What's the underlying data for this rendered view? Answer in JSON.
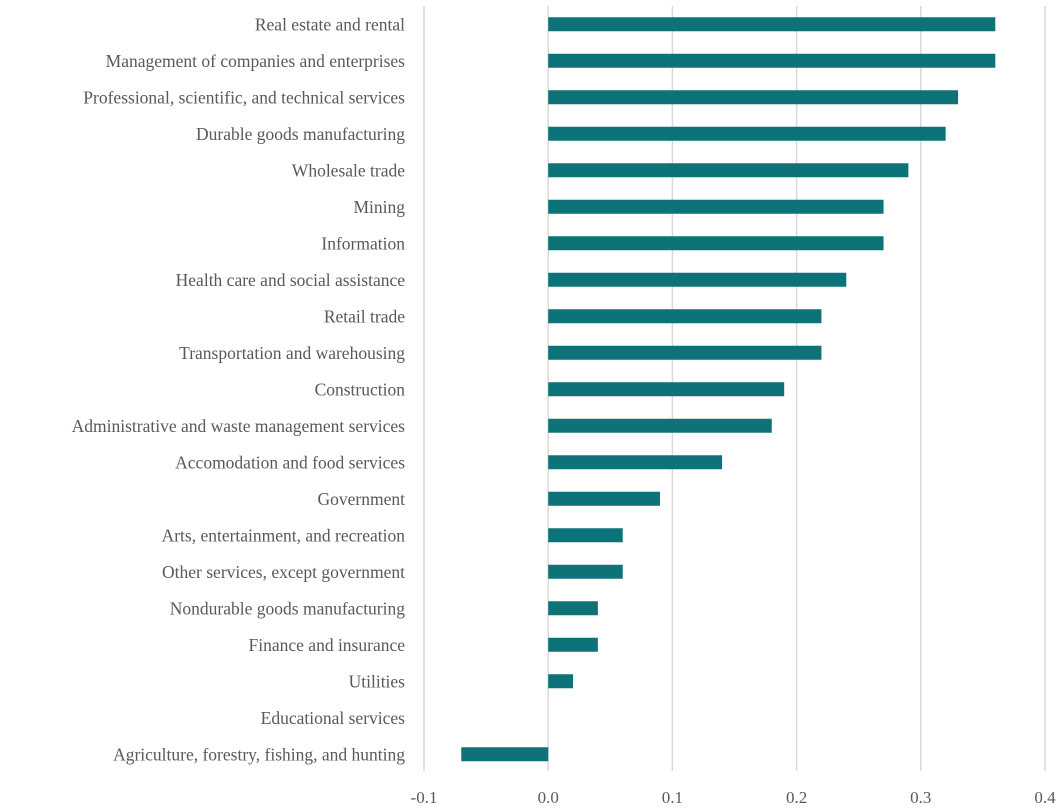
{
  "chart_data": {
    "type": "bar",
    "orientation": "horizontal",
    "title": "",
    "xlabel": "",
    "ylabel": "",
    "xlim": [
      -0.1,
      0.4
    ],
    "xticks": [
      "-0.1",
      "0.0",
      "0.1",
      "0.2",
      "0.3",
      "0.4"
    ],
    "grid": true,
    "legend": "none",
    "color": "#0e7378",
    "categories": [
      "Real estate and rental ",
      "Management of companies and enterprises",
      "Professional, scientific, and technical services",
      "Durable goods manufacturing",
      "Wholesale trade",
      "Mining",
      "Information",
      "Health care and social assistance",
      "Retail trade",
      "Transportation and warehousing",
      "Construction",
      "Administrative and waste management services",
      "Accomodation and food services",
      "Government ",
      "Arts, entertainment, and recreation",
      "Other services, except government",
      "Nondurable goods manufacturing",
      "Finance and insurance",
      "Utilities",
      "Educational services",
      "Agriculture, forestry, fishing, and hunting"
    ],
    "values": [
      0.36,
      0.36,
      0.33,
      0.32,
      0.29,
      0.27,
      0.27,
      0.24,
      0.22,
      0.22,
      0.19,
      0.18,
      0.14,
      0.09,
      0.06,
      0.06,
      0.04,
      0.04,
      0.02,
      0.0,
      -0.07
    ]
  }
}
